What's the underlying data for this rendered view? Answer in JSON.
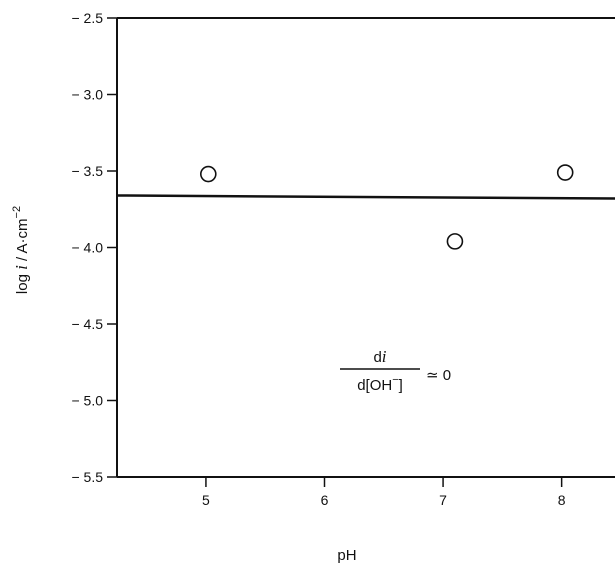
{
  "chart_data": {
    "type": "scatter",
    "xlabel": "pH",
    "ylabel_parts": {
      "prefix": "log ",
      "var": "i",
      "mid": " / A·cm",
      "sup": "−2"
    },
    "xlim": [
      4.25,
      8.45
    ],
    "ylim": [
      -5.5,
      -2.5
    ],
    "x_ticks": [
      5,
      6,
      7,
      8
    ],
    "x_tick_labels": [
      "5",
      "6",
      "7",
      "8"
    ],
    "y_ticks": [
      -2.5,
      -3.0,
      -3.5,
      -4.0,
      -4.5,
      -5.0,
      -5.5
    ],
    "y_tick_labels": [
      "− 2.5",
      "− 3.0",
      "− 3.5",
      "− 4.0",
      "− 4.5",
      "− 5.0",
      "− 5.5"
    ],
    "points": [
      {
        "x": 5.02,
        "y": -3.52
      },
      {
        "x": 7.1,
        "y": -3.96
      },
      {
        "x": 8.03,
        "y": -3.51
      }
    ],
    "fit_line": {
      "x": [
        4.25,
        8.45
      ],
      "y": [
        -3.66,
        -3.68
      ]
    },
    "annotation": {
      "numerator_pre": "d",
      "numerator_var": "i",
      "denominator": "d[OH",
      "denominator_sup": "−",
      "denominator_end": "]",
      "relation": "≃ 0"
    },
    "grid": false,
    "legend": "none"
  }
}
